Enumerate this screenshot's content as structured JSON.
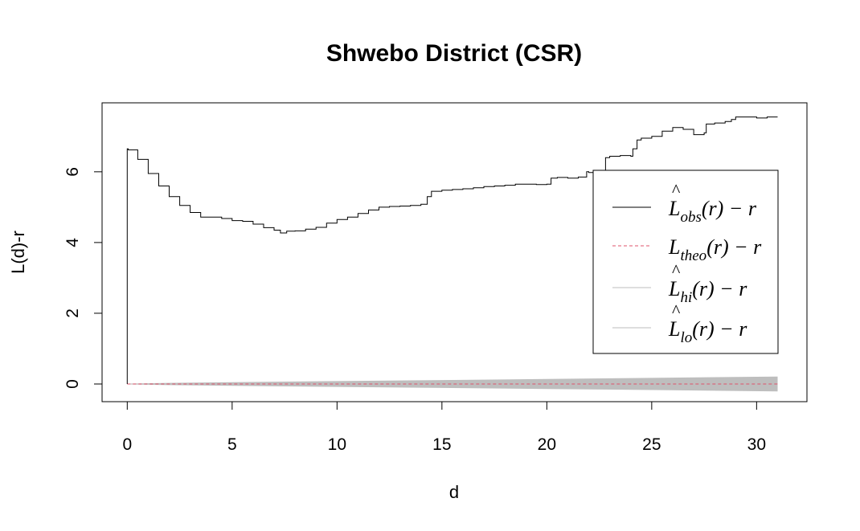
{
  "chart_data": {
    "type": "line",
    "title": "Shwebo District (CSR)",
    "xlabel": "d",
    "ylabel": "L(d)-r",
    "xlim": [
      -1.2,
      32.4
    ],
    "ylim": [
      -0.5,
      7.95
    ],
    "x_ticks": [
      "0",
      "5",
      "10",
      "15",
      "20",
      "25",
      "30"
    ],
    "y_ticks": [
      "0",
      "2",
      "4",
      "6"
    ],
    "grid": false,
    "legend_position": "right",
    "legend": [
      {
        "label_main": "L",
        "label_hat": "^",
        "label_sub": "obs",
        "label_rest": "(r) − r",
        "color": "#000000",
        "dash": "solid"
      },
      {
        "label_main": "L",
        "label_hat": "",
        "label_sub": "theo",
        "label_rest": "(r) − r",
        "color": "#DF536B",
        "dash": "dashed"
      },
      {
        "label_main": "L",
        "label_hat": "^",
        "label_sub": "hi",
        "label_rest": "(r) − r",
        "color": "#BEBEBE",
        "dash": "solid"
      },
      {
        "label_main": "L",
        "label_hat": "^",
        "label_sub": "lo",
        "label_rest": "(r) − r",
        "color": "#BEBEBE",
        "dash": "solid"
      }
    ],
    "series": [
      {
        "id": "obs",
        "color": "#000000",
        "x": [
          0,
          0,
          0.05,
          0.5,
          1,
          1.5,
          2,
          2.5,
          3,
          3.5,
          4,
          4.5,
          5,
          5.5,
          6,
          6.5,
          7,
          7.3,
          7.6,
          8,
          8.5,
          9,
          9.5,
          10,
          10.5,
          11,
          11.5,
          12,
          12.5,
          13,
          13.5,
          14,
          14.3,
          14.5,
          15,
          15.5,
          16,
          16.5,
          17,
          17.5,
          18,
          18.5,
          19,
          19.5,
          20,
          20.2,
          20.5,
          21,
          21.5,
          21.9,
          22,
          22.5,
          22.7,
          22.8,
          23,
          23.5,
          24,
          24.1,
          24.3,
          24.5,
          25,
          25.5,
          26,
          26.5,
          27,
          27.5,
          27.6,
          28,
          28.5,
          28.8,
          29,
          29.5,
          30,
          30.5,
          31
        ],
        "y": [
          0,
          6.65,
          6.62,
          6.35,
          5.95,
          5.6,
          5.3,
          5.05,
          4.85,
          4.72,
          4.72,
          4.68,
          4.62,
          4.6,
          4.52,
          4.42,
          4.35,
          4.27,
          4.32,
          4.33,
          4.38,
          4.43,
          4.55,
          4.65,
          4.72,
          4.82,
          4.92,
          5.0,
          5.02,
          5.03,
          5.05,
          5.08,
          5.3,
          5.45,
          5.48,
          5.5,
          5.52,
          5.55,
          5.58,
          5.6,
          5.62,
          5.65,
          5.65,
          5.64,
          5.65,
          5.82,
          5.84,
          5.82,
          5.85,
          6.0,
          5.98,
          5.95,
          5.9,
          6.4,
          6.44,
          6.46,
          6.44,
          6.65,
          6.9,
          6.95,
          7.0,
          7.15,
          7.25,
          7.2,
          7.05,
          7.1,
          7.35,
          7.38,
          7.42,
          7.48,
          7.55,
          7.55,
          7.52,
          7.55,
          7.55
        ]
      },
      {
        "id": "theo",
        "color": "#DF536B",
        "x": [
          0,
          31
        ],
        "y": [
          0,
          0
        ]
      },
      {
        "id": "hi",
        "color": "#BEBEBE",
        "x": [
          0,
          2,
          5,
          10,
          15,
          20,
          25,
          31
        ],
        "y": [
          0,
          0.02,
          0.04,
          0.07,
          0.1,
          0.13,
          0.16,
          0.2
        ]
      },
      {
        "id": "lo",
        "color": "#BEBEBE",
        "x": [
          0,
          2,
          5,
          10,
          15,
          20,
          25,
          31
        ],
        "y": [
          0,
          -0.02,
          -0.04,
          -0.07,
          -0.1,
          -0.13,
          -0.16,
          -0.2
        ]
      }
    ]
  }
}
